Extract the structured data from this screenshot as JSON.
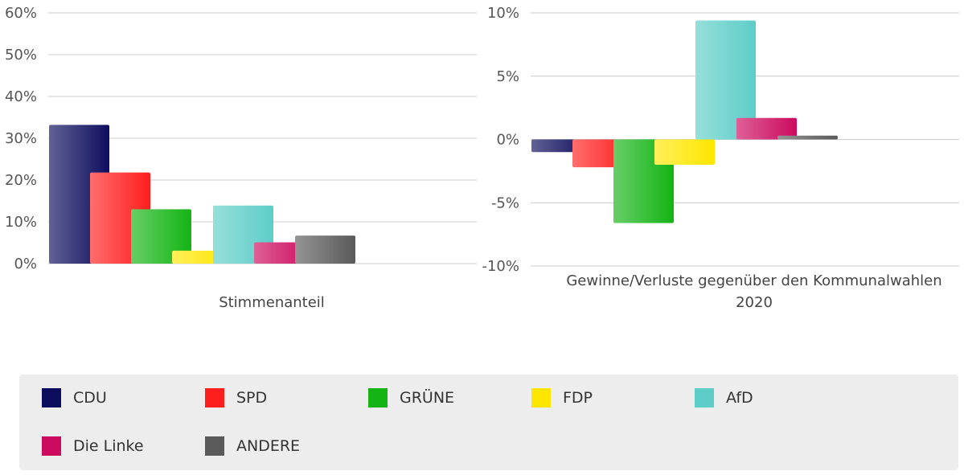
{
  "legend": [
    {
      "label": "CDU",
      "color": "#0d0d5e"
    },
    {
      "label": "SPD",
      "color": "#ff1e1e"
    },
    {
      "label": "GRÜNE",
      "color": "#14b414"
    },
    {
      "label": "FDP",
      "color": "#ffe600"
    },
    {
      "label": "AfD",
      "color": "#5ecdc8"
    },
    {
      "label": "Die Linke",
      "color": "#cc0a5e"
    },
    {
      "label": "ANDERE",
      "color": "#5a5a5a"
    }
  ],
  "chart_data": [
    {
      "type": "bar",
      "xlabel": "Stimmenanteil",
      "ylim": [
        0,
        60
      ],
      "yticks": [
        "0%",
        "10%",
        "20%",
        "30%",
        "40%",
        "50%",
        "60%"
      ],
      "grid": true,
      "legend_position": "bottom",
      "categories": [
        "CDU",
        "SPD",
        "GRÜNE",
        "FDP",
        "AfD",
        "Die Linke",
        "ANDERE"
      ],
      "values": [
        33.2,
        21.8,
        13.0,
        3.1,
        13.9,
        5.1,
        6.7
      ]
    },
    {
      "type": "bar",
      "xlabel": "Gewinne/Verluste gegenüber den Kommunalwahlen 2020",
      "ylim": [
        -10,
        10
      ],
      "yticks": [
        "-10%",
        "-5%",
        "0%",
        "5%",
        "10%"
      ],
      "grid": true,
      "legend_position": "bottom",
      "categories": [
        "CDU",
        "SPD",
        "GRÜNE",
        "FDP",
        "AfD",
        "Die Linke",
        "ANDERE"
      ],
      "values": [
        -1.0,
        -2.2,
        -6.6,
        -2.0,
        9.4,
        1.7,
        0.3
      ]
    }
  ]
}
